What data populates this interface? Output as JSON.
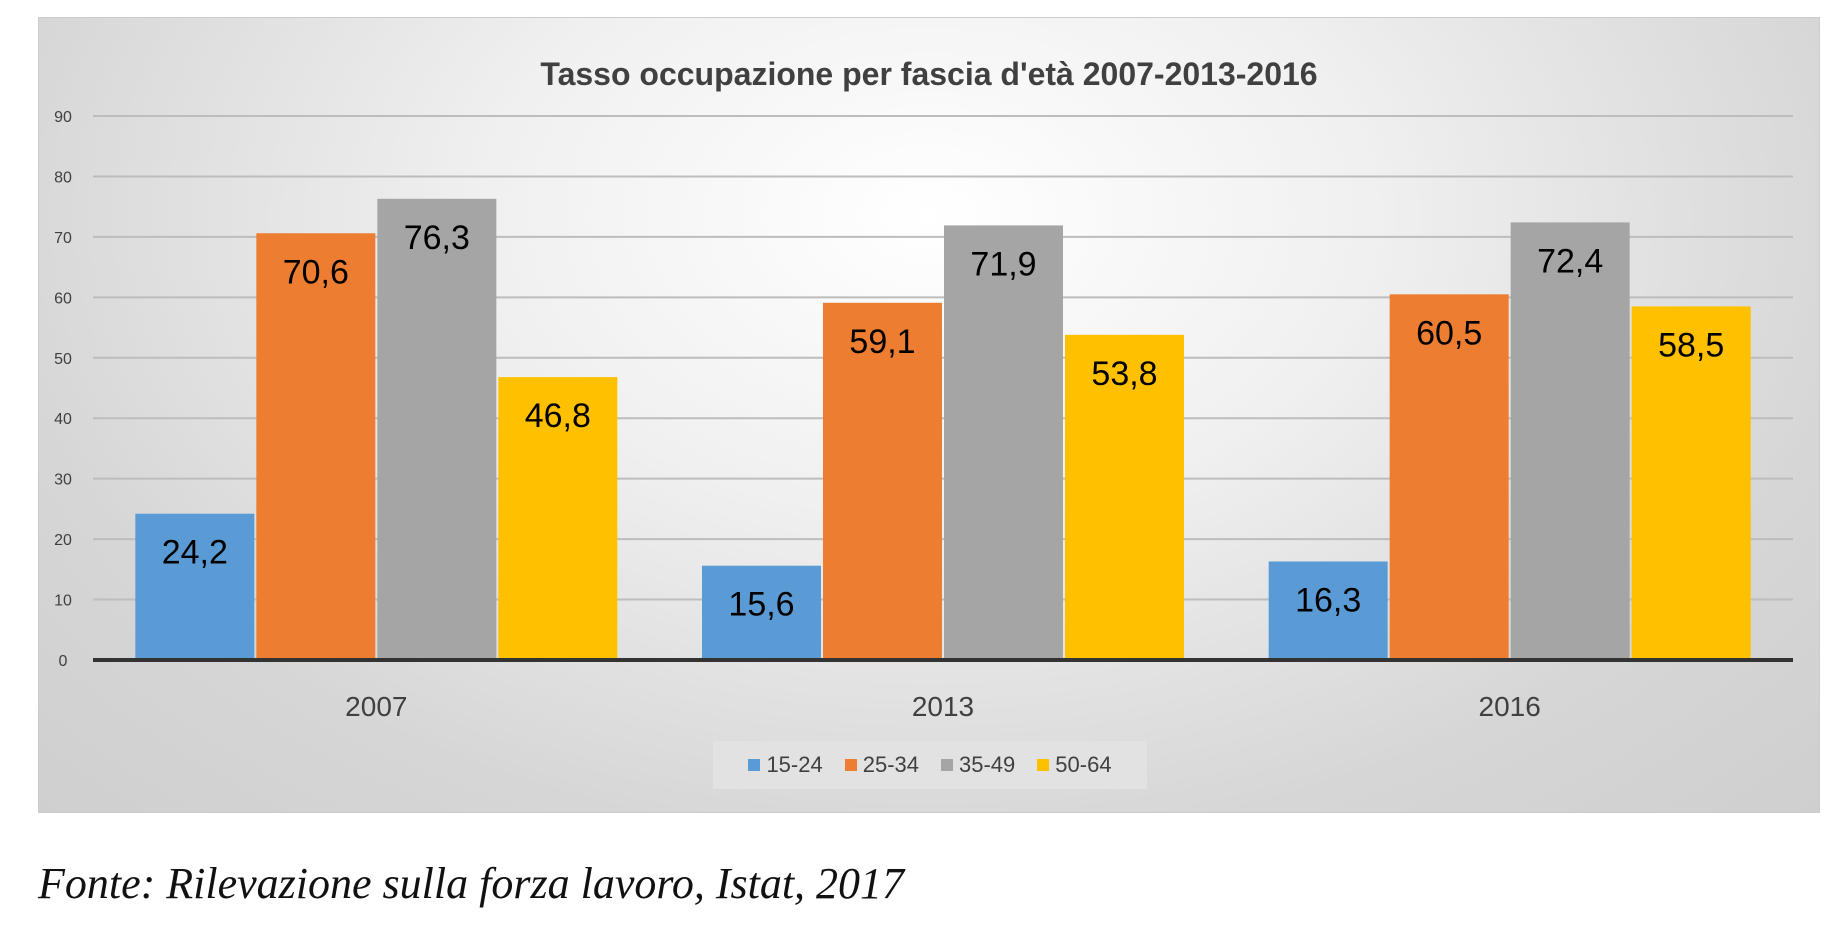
{
  "chart_data": {
    "type": "bar",
    "title": "Tasso occupazione per fascia d'età 2007-2013-2016",
    "categories": [
      "2007",
      "2013",
      "2016"
    ],
    "series": [
      {
        "name": "15-24",
        "color": "#5b9bd5",
        "values": [
          24.2,
          15.6,
          16.3
        ],
        "labels": [
          "24,2",
          "15,6",
          "16,3"
        ]
      },
      {
        "name": "25-34",
        "color": "#ed7d31",
        "values": [
          70.6,
          59.1,
          60.5
        ],
        "labels": [
          "70,6",
          "59,1",
          "60,5"
        ]
      },
      {
        "name": "35-49",
        "color": "#a5a5a5",
        "values": [
          76.3,
          71.9,
          72.4
        ],
        "labels": [
          "76,3",
          "71,9",
          "72,4"
        ]
      },
      {
        "name": "50-64",
        "color": "#ffc000",
        "values": [
          46.8,
          53.8,
          58.5
        ],
        "labels": [
          "46,8",
          "53,8",
          "58,5"
        ]
      }
    ],
    "yticks": [
      "0",
      "10",
      "20",
      "30",
      "40",
      "50",
      "60",
      "70",
      "80",
      "90"
    ],
    "ylim": [
      0,
      90
    ],
    "xlabel": "",
    "ylabel": "",
    "grid": true,
    "legend": "bottom"
  },
  "caption": "Fonte: Rilevazione sulla forza lavoro, Istat, 2017"
}
